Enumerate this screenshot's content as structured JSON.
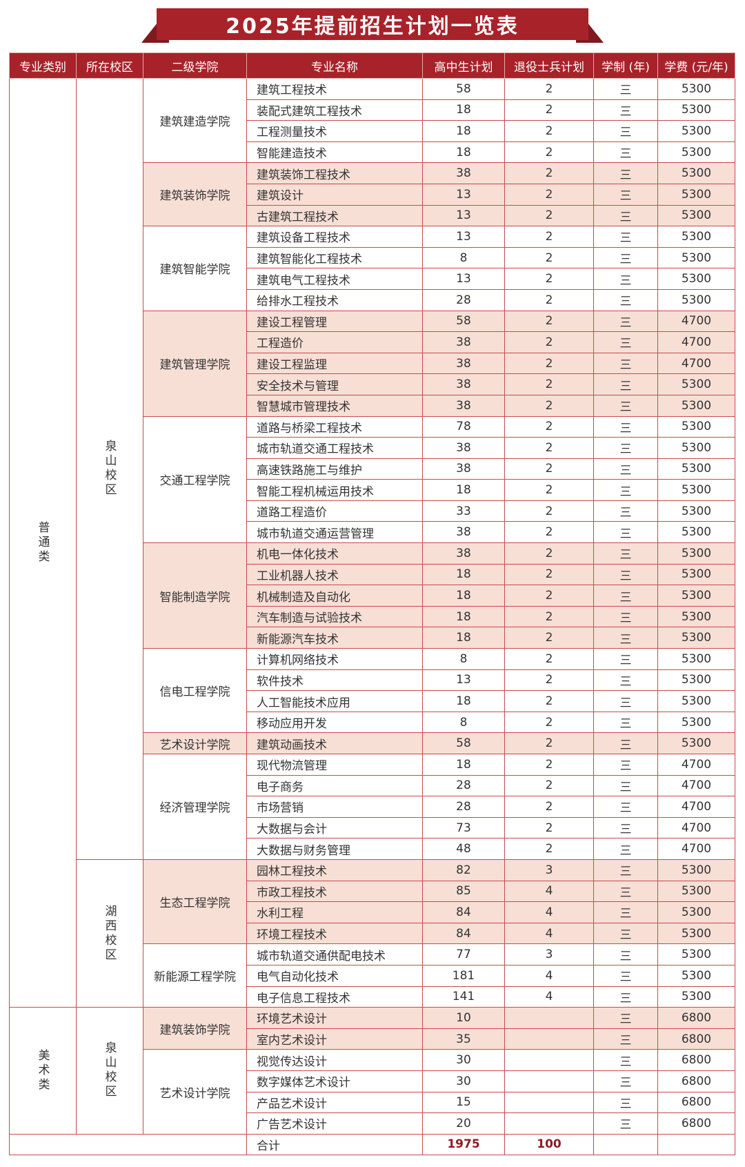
{
  "title": "2025年提前招生计划一览表",
  "colors": {
    "header": "#a8222a",
    "shade": "#f7dfd6",
    "border": "#c9484c",
    "total_text": "#8e1c24"
  },
  "headers": [
    "专业类别",
    "所在校区",
    "二级学院",
    "专业名称",
    "高中生计划",
    "退役士兵计划",
    "学制 (年)",
    "学费 (元/年)"
  ],
  "categories": [
    {
      "name": "普通类",
      "campuses": [
        {
          "name": "泉山校区",
          "colleges": [
            {
              "name": "建筑建造学院",
              "shaded": false,
              "majors": [
                {
                  "name": "建筑工程技术",
                  "high_school": "58",
                  "veteran": "2",
                  "years": "三",
                  "fee": "5300"
                },
                {
                  "name": "装配式建筑工程技术",
                  "high_school": "18",
                  "veteran": "2",
                  "years": "三",
                  "fee": "5300"
                },
                {
                  "name": "工程测量技术",
                  "high_school": "18",
                  "veteran": "2",
                  "years": "三",
                  "fee": "5300"
                },
                {
                  "name": "智能建造技术",
                  "high_school": "18",
                  "veteran": "2",
                  "years": "三",
                  "fee": "5300"
                }
              ]
            },
            {
              "name": "建筑装饰学院",
              "shaded": true,
              "majors": [
                {
                  "name": "建筑装饰工程技术",
                  "high_school": "38",
                  "veteran": "2",
                  "years": "三",
                  "fee": "5300"
                },
                {
                  "name": "建筑设计",
                  "high_school": "13",
                  "veteran": "2",
                  "years": "三",
                  "fee": "5300"
                },
                {
                  "name": "古建筑工程技术",
                  "high_school": "13",
                  "veteran": "2",
                  "years": "三",
                  "fee": "5300"
                }
              ]
            },
            {
              "name": "建筑智能学院",
              "shaded": false,
              "majors": [
                {
                  "name": "建筑设备工程技术",
                  "high_school": "13",
                  "veteran": "2",
                  "years": "三",
                  "fee": "5300"
                },
                {
                  "name": "建筑智能化工程技术",
                  "high_school": "8",
                  "veteran": "2",
                  "years": "三",
                  "fee": "5300"
                },
                {
                  "name": "建筑电气工程技术",
                  "high_school": "13",
                  "veteran": "2",
                  "years": "三",
                  "fee": "5300"
                },
                {
                  "name": "给排水工程技术",
                  "high_school": "28",
                  "veteran": "2",
                  "years": "三",
                  "fee": "5300"
                }
              ]
            },
            {
              "name": "建筑管理学院",
              "shaded": true,
              "majors": [
                {
                  "name": "建设工程管理",
                  "high_school": "58",
                  "veteran": "2",
                  "years": "三",
                  "fee": "4700"
                },
                {
                  "name": "工程造价",
                  "high_school": "38",
                  "veteran": "2",
                  "years": "三",
                  "fee": "4700"
                },
                {
                  "name": "建设工程监理",
                  "high_school": "38",
                  "veteran": "2",
                  "years": "三",
                  "fee": "4700"
                },
                {
                  "name": "安全技术与管理",
                  "high_school": "38",
                  "veteran": "2",
                  "years": "三",
                  "fee": "5300"
                },
                {
                  "name": "智慧城市管理技术",
                  "high_school": "38",
                  "veteran": "2",
                  "years": "三",
                  "fee": "5300"
                }
              ]
            },
            {
              "name": "交通工程学院",
              "shaded": false,
              "majors": [
                {
                  "name": "道路与桥梁工程技术",
                  "high_school": "78",
                  "veteran": "2",
                  "years": "三",
                  "fee": "5300"
                },
                {
                  "name": "城市轨道交通工程技术",
                  "high_school": "38",
                  "veteran": "2",
                  "years": "三",
                  "fee": "5300"
                },
                {
                  "name": "高速铁路施工与维护",
                  "high_school": "38",
                  "veteran": "2",
                  "years": "三",
                  "fee": "5300"
                },
                {
                  "name": "智能工程机械运用技术",
                  "high_school": "18",
                  "veteran": "2",
                  "years": "三",
                  "fee": "5300"
                },
                {
                  "name": "道路工程造价",
                  "high_school": "33",
                  "veteran": "2",
                  "years": "三",
                  "fee": "5300"
                },
                {
                  "name": "城市轨道交通运营管理",
                  "high_school": "38",
                  "veteran": "2",
                  "years": "三",
                  "fee": "5300"
                }
              ]
            },
            {
              "name": "智能制造学院",
              "shaded": true,
              "majors": [
                {
                  "name": "机电一体化技术",
                  "high_school": "38",
                  "veteran": "2",
                  "years": "三",
                  "fee": "5300"
                },
                {
                  "name": "工业机器人技术",
                  "high_school": "18",
                  "veteran": "2",
                  "years": "三",
                  "fee": "5300"
                },
                {
                  "name": "机械制造及自动化",
                  "high_school": "18",
                  "veteran": "2",
                  "years": "三",
                  "fee": "5300"
                },
                {
                  "name": "汽车制造与试验技术",
                  "high_school": "18",
                  "veteran": "2",
                  "years": "三",
                  "fee": "5300"
                },
                {
                  "name": "新能源汽车技术",
                  "high_school": "18",
                  "veteran": "2",
                  "years": "三",
                  "fee": "5300"
                }
              ]
            },
            {
              "name": "信电工程学院",
              "shaded": false,
              "majors": [
                {
                  "name": "计算机网络技术",
                  "high_school": "8",
                  "veteran": "2",
                  "years": "三",
                  "fee": "5300"
                },
                {
                  "name": "软件技术",
                  "high_school": "13",
                  "veteran": "2",
                  "years": "三",
                  "fee": "5300"
                },
                {
                  "name": "人工智能技术应用",
                  "high_school": "18",
                  "veteran": "2",
                  "years": "三",
                  "fee": "5300"
                },
                {
                  "name": "移动应用开发",
                  "high_school": "8",
                  "veteran": "2",
                  "years": "三",
                  "fee": "5300"
                }
              ]
            },
            {
              "name": "艺术设计学院",
              "shaded": true,
              "majors": [
                {
                  "name": "建筑动画技术",
                  "high_school": "58",
                  "veteran": "2",
                  "years": "三",
                  "fee": "5300"
                }
              ]
            },
            {
              "name": "经济管理学院",
              "shaded": false,
              "majors": [
                {
                  "name": "现代物流管理",
                  "high_school": "18",
                  "veteran": "2",
                  "years": "三",
                  "fee": "4700"
                },
                {
                  "name": "电子商务",
                  "high_school": "28",
                  "veteran": "2",
                  "years": "三",
                  "fee": "4700"
                },
                {
                  "name": "市场营销",
                  "high_school": "28",
                  "veteran": "2",
                  "years": "三",
                  "fee": "4700"
                },
                {
                  "name": "大数据与会计",
                  "high_school": "73",
                  "veteran": "2",
                  "years": "三",
                  "fee": "4700"
                },
                {
                  "name": "大数据与财务管理",
                  "high_school": "48",
                  "veteran": "2",
                  "years": "三",
                  "fee": "4700"
                }
              ]
            }
          ]
        },
        {
          "name": "湖西校区",
          "colleges": [
            {
              "name": "生态工程学院",
              "shaded": true,
              "majors": [
                {
                  "name": "园林工程技术",
                  "high_school": "82",
                  "veteran": "3",
                  "years": "三",
                  "fee": "5300"
                },
                {
                  "name": "市政工程技术",
                  "high_school": "85",
                  "veteran": "4",
                  "years": "三",
                  "fee": "5300"
                },
                {
                  "name": "水利工程",
                  "high_school": "84",
                  "veteran": "4",
                  "years": "三",
                  "fee": "5300"
                },
                {
                  "name": "环境工程技术",
                  "high_school": "84",
                  "veteran": "4",
                  "years": "三",
                  "fee": "5300"
                }
              ]
            },
            {
              "name": "新能源工程学院",
              "shaded": false,
              "majors": [
                {
                  "name": "城市轨道交通供配电技术",
                  "high_school": "77",
                  "veteran": "3",
                  "years": "三",
                  "fee": "5300"
                },
                {
                  "name": "电气自动化技术",
                  "high_school": "181",
                  "veteran": "4",
                  "years": "三",
                  "fee": "5300"
                },
                {
                  "name": "电子信息工程技术",
                  "high_school": "141",
                  "veteran": "4",
                  "years": "三",
                  "fee": "5300"
                }
              ]
            }
          ]
        }
      ]
    },
    {
      "name": "美术类",
      "campuses": [
        {
          "name": "泉山校区",
          "colleges": [
            {
              "name": "建筑装饰学院",
              "shaded": true,
              "majors": [
                {
                  "name": "环境艺术设计",
                  "high_school": "10",
                  "veteran": "",
                  "years": "三",
                  "fee": "6800"
                },
                {
                  "name": "室内艺术设计",
                  "high_school": "35",
                  "veteran": "",
                  "years": "三",
                  "fee": "6800"
                }
              ]
            },
            {
              "name": "艺术设计学院",
              "shaded": false,
              "majors": [
                {
                  "name": "视觉传达设计",
                  "high_school": "30",
                  "veteran": "",
                  "years": "三",
                  "fee": "6800"
                },
                {
                  "name": "数字媒体艺术设计",
                  "high_school": "30",
                  "veteran": "",
                  "years": "三",
                  "fee": "6800"
                },
                {
                  "name": "产品艺术设计",
                  "high_school": "15",
                  "veteran": "",
                  "years": "三",
                  "fee": "6800"
                },
                {
                  "name": "广告艺术设计",
                  "high_school": "20",
                  "veteran": "",
                  "years": "三",
                  "fee": "6800"
                }
              ]
            }
          ]
        }
      ]
    }
  ],
  "total": {
    "label": "合计",
    "high_school": "1975",
    "veteran": "100"
  }
}
